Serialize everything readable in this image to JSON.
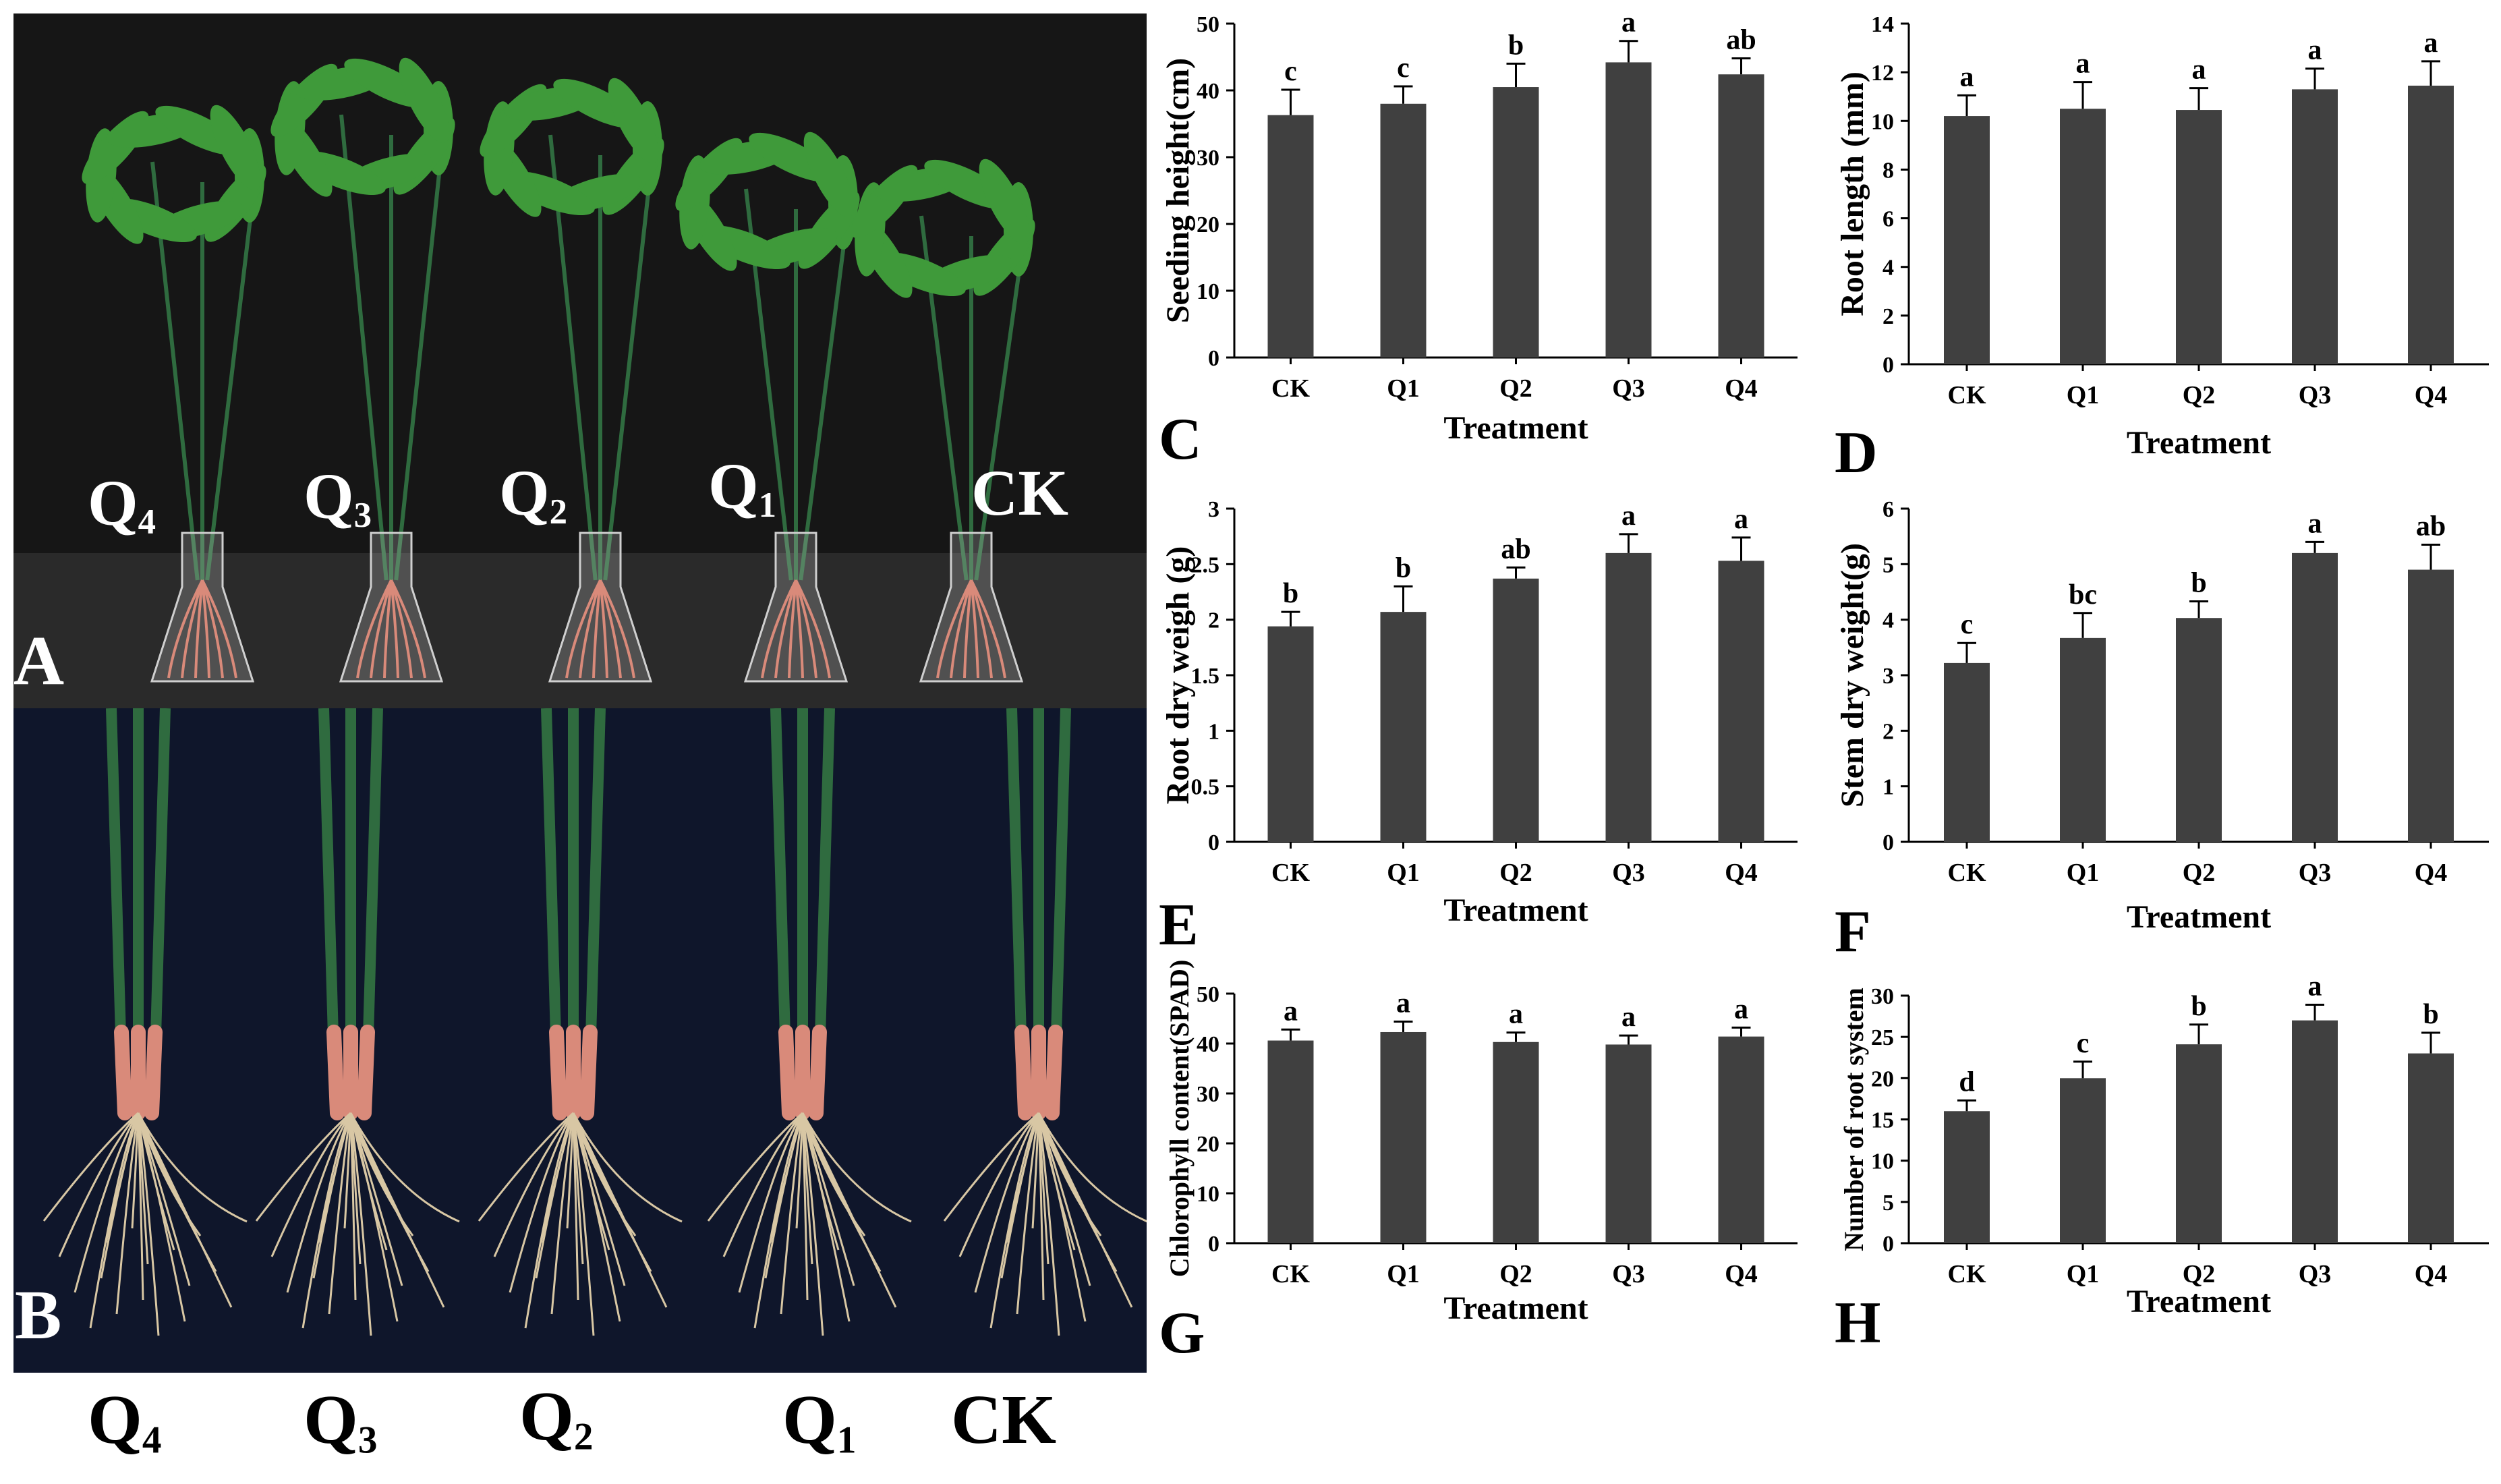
{
  "panel_a": {
    "letter": "A",
    "labels": [
      {
        "main": "Q",
        "sub": "4"
      },
      {
        "main": "Q",
        "sub": "3"
      },
      {
        "main": "Q",
        "sub": "2"
      },
      {
        "main": "Q",
        "sub": "1"
      },
      {
        "main": "CK",
        "sub": ""
      }
    ]
  },
  "panel_b": {
    "letter": "B",
    "labels": [
      {
        "main": "Q",
        "sub": "4"
      },
      {
        "main": "Q",
        "sub": "3"
      },
      {
        "main": "Q",
        "sub": "2"
      },
      {
        "main": "Q",
        "sub": "1"
      },
      {
        "main": "CK",
        "sub": ""
      }
    ]
  },
  "colors": {
    "bar": "#404040",
    "axis": "#000000",
    "leaf": "#3f9a3a",
    "stem": "#2f6b3f",
    "root": "#d8c7a4",
    "root_pink": "#d98a7a"
  },
  "chart_data": [
    {
      "id": "C",
      "letter": "C",
      "type": "bar",
      "categories": [
        "CK",
        "Q1",
        "Q2",
        "Q3",
        "Q4"
      ],
      "values": [
        36.3,
        38.0,
        40.5,
        44.2,
        42.4
      ],
      "errors": [
        3.8,
        2.6,
        3.5,
        3.2,
        2.4
      ],
      "letters": [
        "c",
        "c",
        "b",
        "a",
        "ab"
      ],
      "xlabel": "Treatment",
      "ylabel": "Seeding height(cm)",
      "ylim": [
        0,
        50
      ],
      "yticks": [
        "0",
        "10",
        "20",
        "30",
        "40",
        "50"
      ]
    },
    {
      "id": "D",
      "letter": "D",
      "type": "bar",
      "categories": [
        "CK",
        "Q1",
        "Q2",
        "Q3",
        "Q4"
      ],
      "values": [
        10.2,
        10.5,
        10.45,
        11.3,
        11.45
      ],
      "errors": [
        0.85,
        1.1,
        0.9,
        0.85,
        1.0
      ],
      "letters": [
        "a",
        "a",
        "a",
        "a",
        "a"
      ],
      "xlabel": "Treatment",
      "ylabel": "Root length (mm)",
      "ylim": [
        0,
        14
      ],
      "yticks": [
        "0",
        "2",
        "4",
        "6",
        "8",
        "10",
        "12",
        "14"
      ]
    },
    {
      "id": "E",
      "letter": "E",
      "type": "bar",
      "categories": [
        "CK",
        "Q1",
        "Q2",
        "Q3",
        "Q4"
      ],
      "values": [
        1.94,
        2.07,
        2.37,
        2.6,
        2.53
      ],
      "errors": [
        0.13,
        0.23,
        0.1,
        0.17,
        0.21
      ],
      "letters": [
        "b",
        "b",
        "ab",
        "a",
        "a"
      ],
      "xlabel": "Treatment",
      "ylabel": "Root dry weigh (g)",
      "ylim": [
        0,
        3
      ],
      "yticks": [
        "0",
        "0.5",
        "1",
        "1.5",
        "2",
        "2.5",
        "3"
      ]
    },
    {
      "id": "F",
      "letter": "F",
      "type": "bar",
      "categories": [
        "CK",
        "Q1",
        "Q2",
        "Q3",
        "Q4"
      ],
      "values": [
        3.22,
        3.67,
        4.03,
        5.2,
        4.9
      ],
      "errors": [
        0.36,
        0.45,
        0.3,
        0.2,
        0.45
      ],
      "letters": [
        "c",
        "bc",
        "b",
        "a",
        "ab"
      ],
      "xlabel": "Treatment",
      "ylabel": "Stem dry weight(g)",
      "ylim": [
        0,
        6
      ],
      "yticks": [
        "0",
        "1",
        "2",
        "3",
        "4",
        "5",
        "6"
      ]
    },
    {
      "id": "G",
      "letter": "G",
      "type": "bar",
      "categories": [
        "CK",
        "Q1",
        "Q2",
        "Q3",
        "Q4"
      ],
      "values": [
        40.6,
        42.3,
        40.3,
        39.8,
        41.4
      ],
      "errors": [
        2.2,
        2.1,
        1.9,
        1.8,
        1.8
      ],
      "letters": [
        "a",
        "a",
        "a",
        "a",
        "a"
      ],
      "xlabel": "Treatment",
      "ylabel": "Chlorophyll content(SPAD)",
      "ylim": [
        0,
        50
      ],
      "yticks": [
        "0",
        "10",
        "20",
        "30",
        "40",
        "50"
      ]
    },
    {
      "id": "H",
      "letter": "H",
      "type": "bar",
      "categories": [
        "CK",
        "Q1",
        "Q2",
        "Q3",
        "Q4"
      ],
      "values": [
        16.0,
        20.0,
        24.1,
        27.0,
        23.0
      ],
      "errors": [
        1.3,
        2.0,
        2.4,
        1.9,
        2.5
      ],
      "letters": [
        "d",
        "c",
        "b",
        "a",
        "b"
      ],
      "xlabel": "Treatment",
      "ylabel": "Number of root system",
      "ylim": [
        0,
        30
      ],
      "yticks": [
        "0",
        "5",
        "10",
        "15",
        "20",
        "25",
        "30"
      ]
    }
  ]
}
